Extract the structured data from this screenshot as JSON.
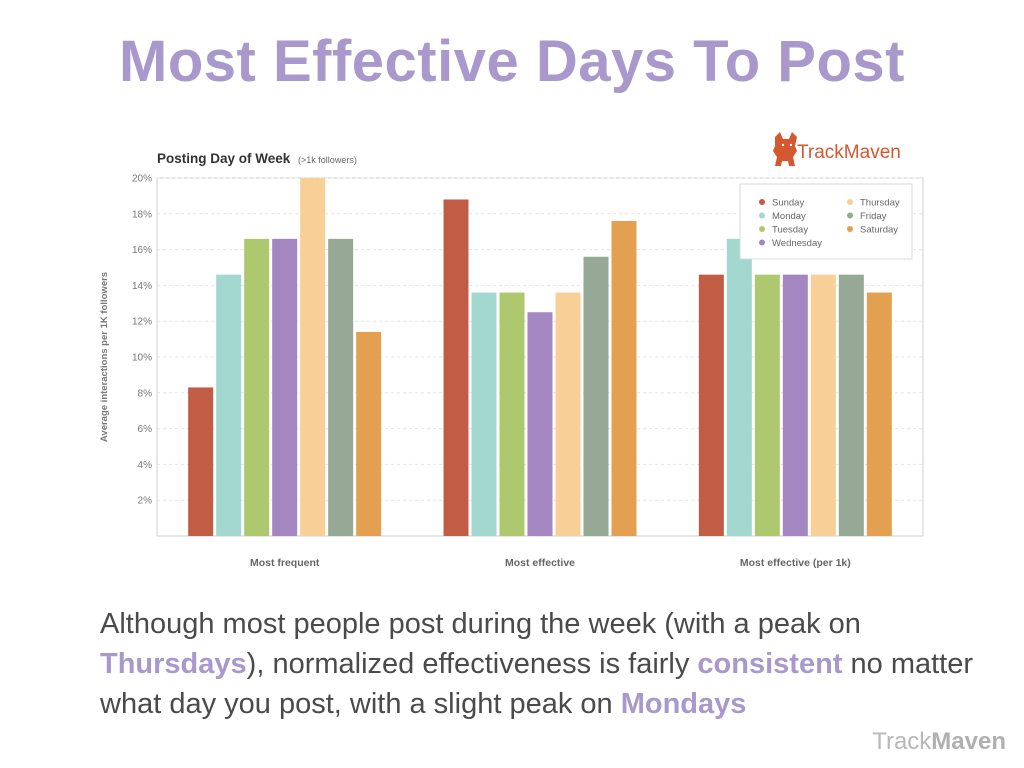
{
  "slide": {
    "title": "Most Effective Days To Post",
    "caption": {
      "p1": "Although most people post during the week (with a peak on ",
      "h1": "Thursdays",
      "p2": "), normalized effectiveness is fairly ",
      "h2": "consistent",
      "p3": " no matter what day you post, with a slight peak on ",
      "h3": "Mondays"
    },
    "footer_logo": {
      "light": "Track",
      "bold": "Maven"
    }
  },
  "chart_header": {
    "title": "Posting Day of Week",
    "subtitle": "(>1k followers)",
    "logo_text": "TrackMaven",
    "logo_icon": "dog-icon"
  },
  "chart_data": {
    "type": "bar",
    "categories": [
      "Most frequent",
      "Most effective",
      "Most effective (per 1k)"
    ],
    "ylabel": "Average interactions per 1K followers",
    "ylim": [
      0,
      20
    ],
    "yticks": [
      "2%",
      "4%",
      "6%",
      "8%",
      "10%",
      "12%",
      "14%",
      "16%",
      "18%",
      "20%"
    ],
    "grid": true,
    "legend_position": "top-right",
    "series": [
      {
        "name": "Sunday",
        "color": "#c15c45",
        "values": [
          8.3,
          18.8,
          14.6
        ]
      },
      {
        "name": "Monday",
        "color": "#a2d8d0",
        "values": [
          14.6,
          13.6,
          16.6
        ]
      },
      {
        "name": "Tuesday",
        "color": "#aec870",
        "values": [
          16.6,
          13.6,
          14.6
        ]
      },
      {
        "name": "Wednesday",
        "color": "#a486c0",
        "values": [
          16.6,
          12.5,
          14.6
        ]
      },
      {
        "name": "Thursday",
        "color": "#f8cf96",
        "values": [
          20.0,
          13.6,
          14.6
        ]
      },
      {
        "name": "Friday",
        "color": "#96a896",
        "values": [
          16.6,
          15.6,
          14.6
        ]
      },
      {
        "name": "Saturday",
        "color": "#e2a050",
        "values": [
          11.4,
          17.6,
          13.6
        ]
      }
    ]
  }
}
